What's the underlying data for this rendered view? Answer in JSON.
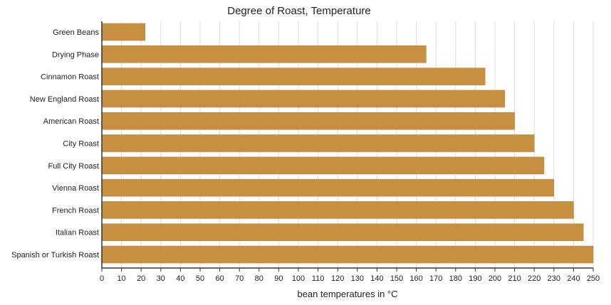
{
  "chart_data": {
    "type": "bar",
    "orientation": "horizontal",
    "title": "Degree of Roast, Temperature",
    "xlabel": "bean temperatures in °C",
    "ylabel": "",
    "categories": [
      "Green Beans",
      "Drying Phase",
      "Cinnamon Roast",
      "New England Roast",
      "American Roast",
      "City Roast",
      "Full City Roast",
      "Vienna Roast",
      "French Roast",
      "Italian Roast",
      "Spanish or Turkish Roast"
    ],
    "values": [
      22,
      165,
      195,
      205,
      210,
      220,
      225,
      230,
      240,
      245,
      250
    ],
    "xlim": [
      0,
      250
    ],
    "xticks": [
      0,
      10,
      20,
      30,
      40,
      50,
      60,
      70,
      80,
      90,
      100,
      110,
      120,
      130,
      140,
      150,
      160,
      170,
      180,
      190,
      200,
      210,
      220,
      230,
      240,
      250
    ],
    "grid": "vertical",
    "legend": "none",
    "colors": {
      "bar": "#c98f41",
      "bar_edge": "#b47c32",
      "grid": "#dddddd",
      "axis": "#333333"
    }
  }
}
